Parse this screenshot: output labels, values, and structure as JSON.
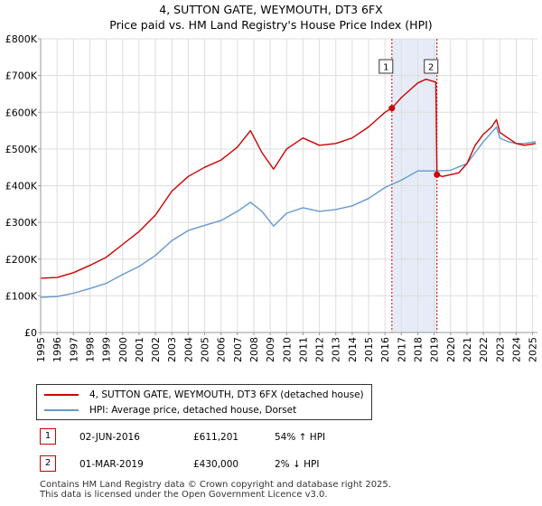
{
  "title_line1": "4, SUTTON GATE, WEYMOUTH, DT3 6FX",
  "title_line2": "Price paid vs. HM Land Registry's House Price Index (HPI)",
  "colors": {
    "property": "#cc0000",
    "hpi": "#6699cc",
    "shade": "#e6ecf7"
  },
  "legend": {
    "property": "4, SUTTON GATE, WEYMOUTH, DT3 6FX (detached house)",
    "hpi": "HPI: Average price, detached house, Dorset"
  },
  "transactions": [
    {
      "id": "1",
      "date": "02-JUN-2016",
      "price": "£611,201",
      "hpi_diff": "54% ↑ HPI"
    },
    {
      "id": "2",
      "date": "01-MAR-2019",
      "price": "£430,000",
      "hpi_diff": "2% ↓ HPI"
    }
  ],
  "footer_line1": "Contains HM Land Registry data © Crown copyright and database right 2025.",
  "footer_line2": "This data is licensed under the Open Government Licence v3.0.",
  "chart_data": {
    "type": "line",
    "title": "4, SUTTON GATE, WEYMOUTH, DT3 6FX — Price paid vs. HM Land Registry's House Price Index (HPI)",
    "xlabel": "",
    "ylabel": "",
    "xlim": [
      1995,
      2025.3
    ],
    "ylim": [
      0,
      800000
    ],
    "y_ticks": [
      0,
      100000,
      200000,
      300000,
      400000,
      500000,
      600000,
      700000,
      800000
    ],
    "y_tick_labels": [
      "£0",
      "£100K",
      "£200K",
      "£300K",
      "£400K",
      "£500K",
      "£600K",
      "£700K",
      "£800K"
    ],
    "x_ticks": [
      1995,
      1996,
      1997,
      1998,
      1999,
      2000,
      2001,
      2002,
      2003,
      2004,
      2005,
      2006,
      2007,
      2008,
      2009,
      2010,
      2011,
      2012,
      2013,
      2014,
      2015,
      2016,
      2017,
      2018,
      2019,
      2020,
      2021,
      2022,
      2023,
      2024,
      2025
    ],
    "x_tick_labels": [
      "1995",
      "1996",
      "1997",
      "1998",
      "1999",
      "2000",
      "2001",
      "2002",
      "2003",
      "2004",
      "2005",
      "2006",
      "2007",
      "2008",
      "2009",
      "2010",
      "2011",
      "2012",
      "2013",
      "2014",
      "2015",
      "2016",
      "2017",
      "2018",
      "2019",
      "2020",
      "2021",
      "2022",
      "2023",
      "2024",
      "2025"
    ],
    "grid": true,
    "shaded_period": [
      2016.42,
      2019.17
    ],
    "markers": [
      {
        "label": "1",
        "x": 2016.42,
        "y": 611201
      },
      {
        "label": "2",
        "x": 2019.17,
        "y": 430000
      }
    ],
    "series": [
      {
        "name": "4, SUTTON GATE, WEYMOUTH, DT3 6FX (detached house)",
        "x": [
          1995,
          1996,
          1997,
          1998,
          1999,
          2000,
          2001,
          2002,
          2003,
          2004,
          2005,
          2006,
          2007,
          2007.8,
          2008.5,
          2009.2,
          2010,
          2011,
          2012,
          2013,
          2014,
          2015,
          2016,
          2016.42,
          2017,
          2017.5,
          2018,
          2018.5,
          2019.1,
          2019.17,
          2019.5,
          2020,
          2020.5,
          2021,
          2021.5,
          2022,
          2022.5,
          2022.8,
          2023,
          2023.5,
          2024,
          2024.5,
          2025.2
        ],
        "values": [
          148000,
          150000,
          163000,
          183000,
          205000,
          240000,
          275000,
          320000,
          385000,
          425000,
          450000,
          470000,
          505000,
          550000,
          490000,
          445000,
          500000,
          530000,
          510000,
          515000,
          530000,
          560000,
          600000,
          611201,
          640000,
          660000,
          680000,
          690000,
          682000,
          430000,
          425000,
          430000,
          435000,
          460000,
          510000,
          540000,
          560000,
          580000,
          545000,
          530000,
          515000,
          510000,
          515000
        ]
      },
      {
        "name": "HPI: Average price, detached house, Dorset",
        "x": [
          1995,
          1996,
          1997,
          1998,
          1999,
          2000,
          2001,
          2002,
          2003,
          2004,
          2005,
          2006,
          2007,
          2007.8,
          2008.5,
          2009.2,
          2010,
          2011,
          2012,
          2013,
          2014,
          2015,
          2016,
          2017,
          2018,
          2019,
          2020,
          2021,
          2021.5,
          2022,
          2022.5,
          2022.8,
          2023,
          2023.5,
          2024,
          2024.5,
          2025.2
        ],
        "values": [
          96000,
          98000,
          107000,
          120000,
          134000,
          158000,
          180000,
          210000,
          250000,
          278000,
          292000,
          305000,
          330000,
          355000,
          330000,
          290000,
          325000,
          340000,
          330000,
          335000,
          345000,
          365000,
          395000,
          415000,
          440000,
          440000,
          442000,
          460000,
          490000,
          520000,
          545000,
          560000,
          530000,
          520000,
          515000,
          515000,
          520000
        ]
      }
    ]
  }
}
